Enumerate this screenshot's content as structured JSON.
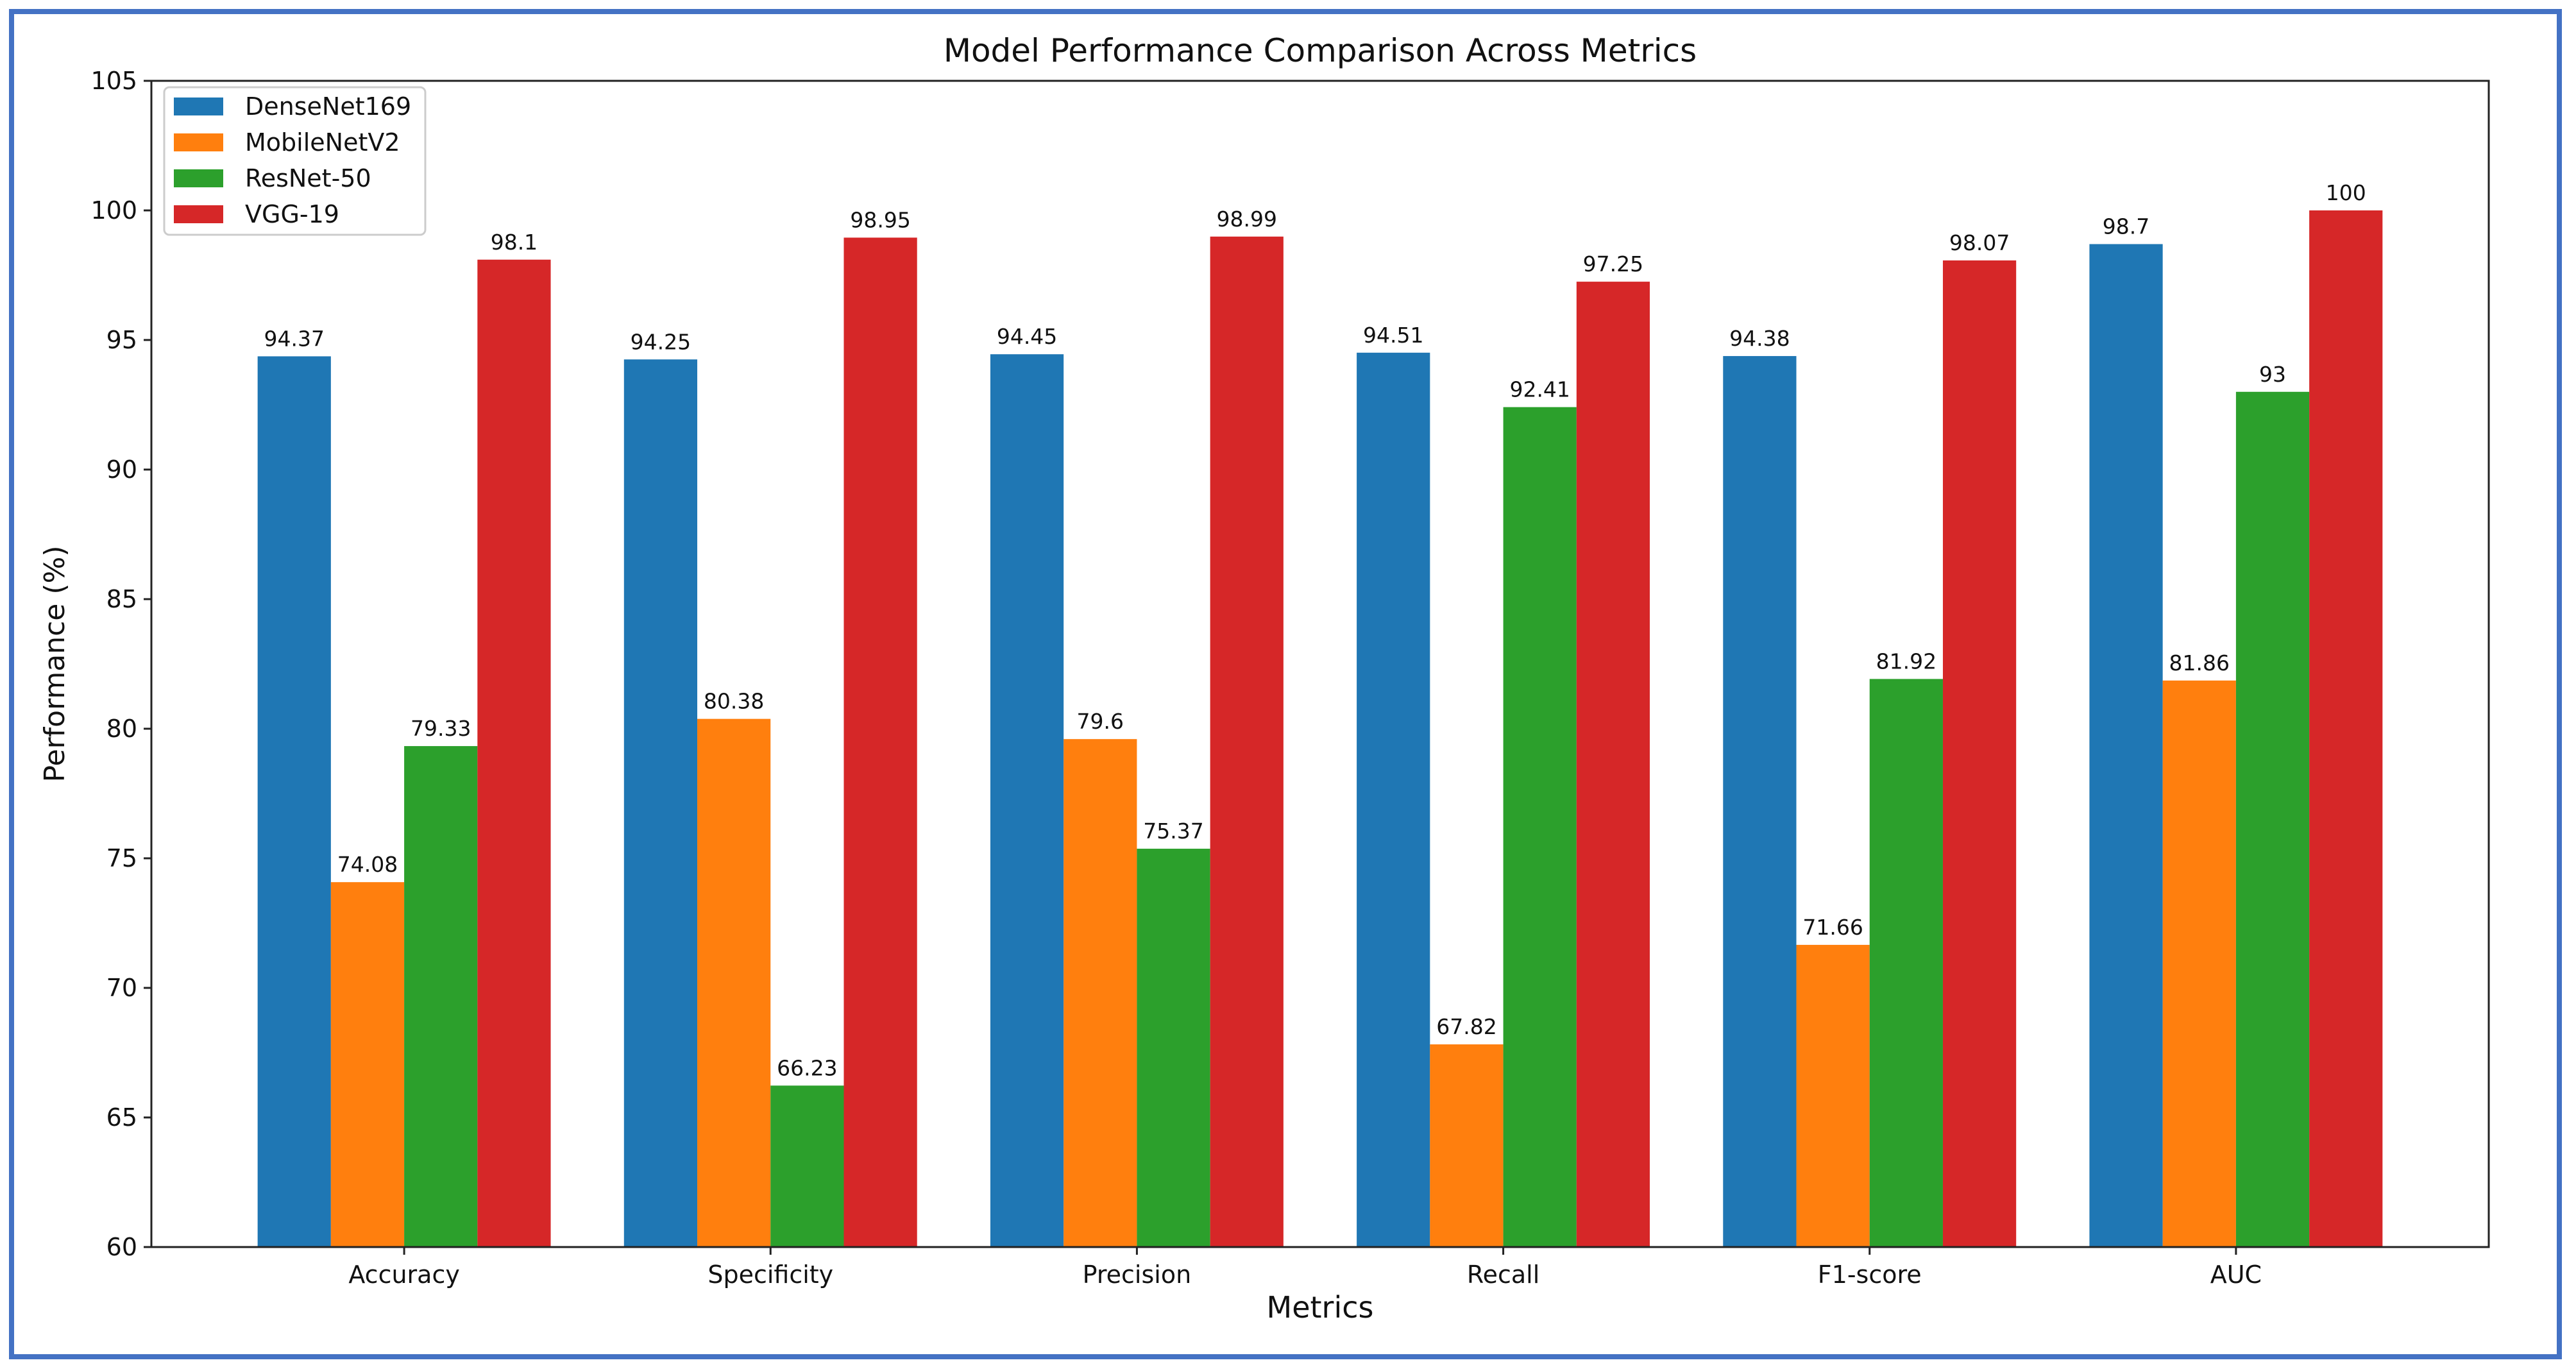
{
  "frame_color": "#4472C4",
  "chart_data": {
    "type": "bar",
    "title": "Model Performance Comparison Across Metrics",
    "xlabel": "Metrics",
    "ylabel": "Performance (%)",
    "categories": [
      "Accuracy",
      "Specificity",
      "Precision",
      "Recall",
      "F1-score",
      "AUC"
    ],
    "ylim": [
      60,
      105
    ],
    "yticks": [
      60,
      65,
      70,
      75,
      80,
      85,
      90,
      95,
      100,
      105
    ],
    "grid": false,
    "legend_position": "top-left",
    "series": [
      {
        "name": "DenseNet169",
        "color": "#1f77b4",
        "values": [
          94.37,
          94.25,
          94.45,
          94.51,
          94.38,
          98.7
        ]
      },
      {
        "name": "MobileNetV2",
        "color": "#ff7f0e",
        "values": [
          74.08,
          80.38,
          79.6,
          67.82,
          71.66,
          81.86
        ]
      },
      {
        "name": "ResNet-50",
        "color": "#2ca02c",
        "values": [
          79.33,
          66.23,
          75.37,
          92.41,
          81.92,
          93
        ]
      },
      {
        "name": "VGG-19",
        "color": "#d62728",
        "values": [
          98.1,
          98.95,
          98.99,
          97.25,
          98.07,
          100
        ]
      }
    ]
  }
}
